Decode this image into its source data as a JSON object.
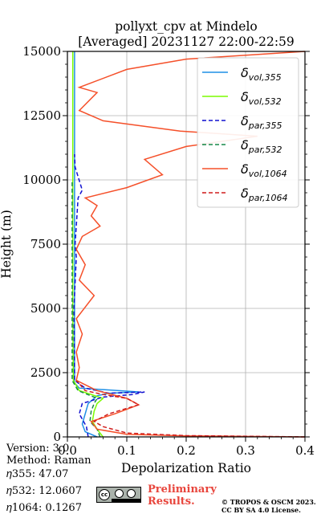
{
  "chart_data": {
    "type": "line",
    "title": "pollyxt_cpv at Mindelo",
    "subtitle": "[Averaged] 20231127 22:00-22:59",
    "xlabel": "Depolarization Ratio",
    "ylabel": "Height (m)",
    "xlim": [
      0,
      0.4
    ],
    "ylim": [
      0,
      15000
    ],
    "x_ticks": [
      "0.0",
      "0.1",
      "0.2",
      "0.3",
      "0.4"
    ],
    "y_ticks": [
      "0",
      "2500",
      "5000",
      "7500",
      "10000",
      "12500",
      "15000"
    ],
    "grid": true,
    "legend_position": "top-right",
    "series": [
      {
        "name": "δvol,355",
        "sub": "vol,355",
        "color": "#1f8fe6",
        "style": "solid",
        "points": [
          [
            0.05,
            0
          ],
          [
            0.03,
            200
          ],
          [
            0.025,
            500
          ],
          [
            0.03,
            900
          ],
          [
            0.035,
            1300
          ],
          [
            0.05,
            1600
          ],
          [
            0.07,
            1700
          ],
          [
            0.12,
            1750
          ],
          [
            0.02,
            1900
          ],
          [
            0.012,
            2100
          ],
          [
            0.012,
            5000
          ],
          [
            0.012,
            8000
          ],
          [
            0.012,
            11000
          ],
          [
            0.012,
            12500
          ],
          [
            0.012,
            14500
          ],
          [
            0.012,
            15000
          ]
        ]
      },
      {
        "name": "δvol,532",
        "sub": "vol,532",
        "color": "#7cfc00",
        "style": "solid",
        "points": [
          [
            0.06,
            0
          ],
          [
            0.05,
            300
          ],
          [
            0.042,
            600
          ],
          [
            0.045,
            1000
          ],
          [
            0.05,
            1300
          ],
          [
            0.06,
            1500
          ],
          [
            0.02,
            1800
          ],
          [
            0.01,
            2200
          ],
          [
            0.009,
            5000
          ],
          [
            0.009,
            8000
          ],
          [
            0.009,
            11000
          ],
          [
            0.009,
            13000
          ],
          [
            0.009,
            15000
          ]
        ]
      },
      {
        "name": "δpar,355",
        "sub": "par,355",
        "color": "#1010d0",
        "style": "dashed",
        "points": [
          [
            0.035,
            0
          ],
          [
            0.032,
            400
          ],
          [
            0.02,
            900
          ],
          [
            0.025,
            1300
          ],
          [
            0.06,
            1550
          ],
          [
            0.11,
            1650
          ],
          [
            0.13,
            1750
          ],
          [
            0.07,
            1700
          ],
          [
            0.03,
            1900
          ],
          [
            0.012,
            2200
          ],
          [
            0.011,
            5000
          ],
          [
            0.015,
            7000
          ],
          [
            0.013,
            7500
          ],
          [
            0.018,
            9300
          ],
          [
            0.025,
            9600
          ],
          [
            0.013,
            10500
          ],
          [
            0.012,
            11000
          ]
        ]
      },
      {
        "name": "δpar,532",
        "sub": "par,532",
        "color": "#168848",
        "style": "dashed",
        "points": [
          [
            0.055,
            0
          ],
          [
            0.05,
            300
          ],
          [
            0.038,
            600
          ],
          [
            0.04,
            1000
          ],
          [
            0.045,
            1300
          ],
          [
            0.05,
            1500
          ],
          [
            0.018,
            1800
          ],
          [
            0.008,
            2200
          ],
          [
            0.008,
            5000
          ],
          [
            0.008,
            8000
          ],
          [
            0.008,
            10000
          ]
        ]
      },
      {
        "name": "δvol,1064",
        "sub": "vol,1064",
        "color": "#f5502a",
        "style": "solid",
        "points": [
          [
            0.4,
            0
          ],
          [
            0.2,
            40
          ],
          [
            0.1,
            100
          ],
          [
            0.05,
            300
          ],
          [
            0.04,
            600
          ],
          [
            0.08,
            900
          ],
          [
            0.12,
            1250
          ],
          [
            0.1,
            1500
          ],
          [
            0.05,
            1800
          ],
          [
            0.015,
            2200
          ],
          [
            0.02,
            2700
          ],
          [
            0.015,
            3300
          ],
          [
            0.025,
            4000
          ],
          [
            0.015,
            4600
          ],
          [
            0.045,
            5500
          ],
          [
            0.02,
            6100
          ],
          [
            0.03,
            6700
          ],
          [
            0.015,
            7300
          ],
          [
            0.025,
            7800
          ],
          [
            0.055,
            8200
          ],
          [
            0.04,
            8600
          ],
          [
            0.05,
            9000
          ],
          [
            0.03,
            9300
          ],
          [
            0.1,
            9700
          ],
          [
            0.16,
            10200
          ],
          [
            0.13,
            10800
          ],
          [
            0.2,
            11300
          ],
          [
            0.32,
            11700
          ],
          [
            0.19,
            11900
          ],
          [
            0.06,
            12300
          ],
          [
            0.02,
            12700
          ],
          [
            0.05,
            13400
          ],
          [
            0.02,
            13600
          ],
          [
            0.1,
            14300
          ],
          [
            0.2,
            14700
          ],
          [
            0.4,
            15000
          ]
        ]
      },
      {
        "name": "δpar,1064",
        "sub": "par,1064",
        "color": "#d01e1e",
        "style": "dashed",
        "points": [
          [
            0.4,
            0
          ],
          [
            0.2,
            50
          ],
          [
            0.1,
            150
          ],
          [
            0.06,
            400
          ],
          [
            0.045,
            600
          ],
          [
            0.07,
            900
          ],
          [
            0.12,
            1250
          ],
          [
            0.1,
            1500
          ],
          [
            0.06,
            1650
          ],
          [
            0.03,
            1800
          ],
          [
            0.015,
            2200
          ]
        ]
      }
    ]
  },
  "footer": {
    "version": "Version: 3.0",
    "method": "Method: Raman",
    "eta355": "𝜂355:  47.07",
    "eta532": "𝜂532: 12.0607",
    "eta1064": "𝜂1064: 0.1267",
    "prelim_line1": "Preliminary",
    "prelim_line2": "Results.",
    "copyright_line1": "© TROPOS & OSCM 2023.",
    "copyright_line2": "CC BY SA 4.0 License.",
    "badge_text": "cc"
  }
}
